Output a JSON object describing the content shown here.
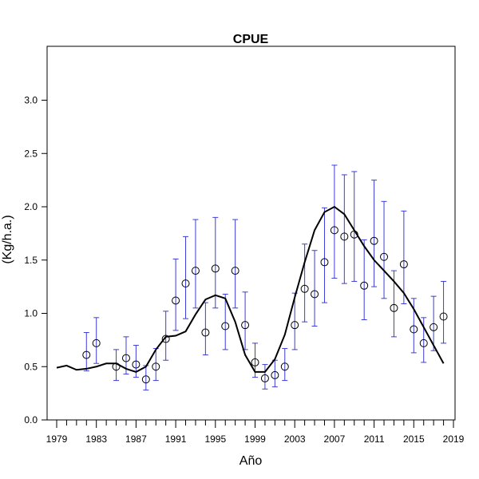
{
  "chart_data": {
    "type": "scatter",
    "title": "CPUE",
    "xlabel": "Año",
    "ylabel": "(Kg/h.a.)",
    "xlim": [
      1978,
      2020
    ],
    "ylim": [
      0,
      3.5
    ],
    "x_ticks": [
      1979,
      1983,
      1987,
      1991,
      1995,
      1999,
      2003,
      2007,
      2011,
      2015,
      2019
    ],
    "x_tick_labels": [
      "1979",
      "1983",
      "1987",
      "1991",
      "1995",
      "1999",
      "2003",
      "2007",
      "2011",
      "2015",
      "2019"
    ],
    "x_minor_ticks": [
      1979,
      1980,
      1981,
      1982,
      1983,
      1984,
      1985,
      1986,
      1987,
      1988,
      1989,
      1990,
      1991,
      1992,
      1993,
      1994,
      1995,
      1996,
      1997,
      1998,
      1999,
      2000,
      2001,
      2002,
      2003,
      2004,
      2005,
      2006,
      2007,
      2008,
      2009,
      2010,
      2011,
      2012,
      2013,
      2014,
      2015,
      2016,
      2017,
      2018,
      2019
    ],
    "y_ticks": [
      0.0,
      0.5,
      1.0,
      1.5,
      2.0,
      2.5,
      3.0
    ],
    "y_tick_labels": [
      "0.0",
      "0.5",
      "1.0",
      "1.5",
      "2.0",
      "2.5",
      "3.0"
    ],
    "grid": false,
    "colors": {
      "points": "#000000",
      "error_bars": "#3b3bdb",
      "trend": "#000000"
    },
    "series": [
      {
        "kind": "points_with_error_bars",
        "x": [
          1982,
          1983,
          1985,
          1986,
          1987,
          1988,
          1989,
          1990,
          1991,
          1992,
          1993,
          1994,
          1995,
          1996,
          1997,
          1998,
          1999,
          2000,
          2001,
          2002,
          2003,
          2004,
          2005,
          2006,
          2007,
          2008,
          2009,
          2010,
          2011,
          2012,
          2013,
          2014,
          2015,
          2016,
          2017,
          2018
        ],
        "y": [
          0.61,
          0.72,
          0.5,
          0.58,
          0.52,
          0.38,
          0.5,
          0.76,
          1.12,
          1.28,
          1.4,
          0.82,
          1.42,
          0.88,
          1.4,
          0.89,
          0.54,
          0.39,
          0.42,
          0.5,
          0.89,
          1.23,
          1.18,
          1.48,
          1.78,
          1.72,
          1.74,
          1.26,
          1.68,
          1.53,
          1.05,
          1.46,
          0.85,
          0.72,
          0.87,
          0.97
        ],
        "lower": [
          0.46,
          0.53,
          0.37,
          0.43,
          0.4,
          0.28,
          0.37,
          0.56,
          0.84,
          0.95,
          1.05,
          0.61,
          1.05,
          0.66,
          1.05,
          0.66,
          0.4,
          0.29,
          0.31,
          0.37,
          0.66,
          0.92,
          0.88,
          1.1,
          1.33,
          1.28,
          1.3,
          0.94,
          1.25,
          1.14,
          0.78,
          1.09,
          0.63,
          0.54,
          0.65,
          0.72
        ],
        "upper": [
          0.82,
          0.96,
          0.66,
          0.78,
          0.7,
          0.51,
          0.67,
          1.02,
          1.51,
          1.72,
          1.88,
          1.1,
          1.9,
          1.18,
          1.88,
          1.2,
          0.72,
          0.52,
          0.56,
          0.67,
          1.19,
          1.65,
          1.59,
          1.99,
          2.39,
          2.3,
          2.33,
          1.69,
          2.25,
          2.05,
          1.4,
          1.96,
          1.14,
          0.96,
          1.16,
          1.3
        ]
      },
      {
        "kind": "line",
        "x": [
          1979,
          1980,
          1981,
          1982,
          1983,
          1984,
          1985,
          1986,
          1987,
          1988,
          1989,
          1990,
          1991,
          1992,
          1993,
          1994,
          1995,
          1996,
          1997,
          1998,
          1999,
          2000,
          2001,
          2002,
          2003,
          2004,
          2005,
          2006,
          2007,
          2008,
          2009,
          2010,
          2011,
          2012,
          2013,
          2014,
          2015,
          2016,
          2017,
          2018
        ],
        "y": [
          0.49,
          0.51,
          0.47,
          0.48,
          0.5,
          0.53,
          0.53,
          0.48,
          0.45,
          0.5,
          0.66,
          0.78,
          0.79,
          0.83,
          0.99,
          1.13,
          1.17,
          1.14,
          0.92,
          0.61,
          0.45,
          0.45,
          0.57,
          0.8,
          1.15,
          1.48,
          1.78,
          1.95,
          2.0,
          1.93,
          1.78,
          1.63,
          1.5,
          1.4,
          1.3,
          1.19,
          1.04,
          0.87,
          0.7,
          0.53
        ]
      }
    ]
  }
}
